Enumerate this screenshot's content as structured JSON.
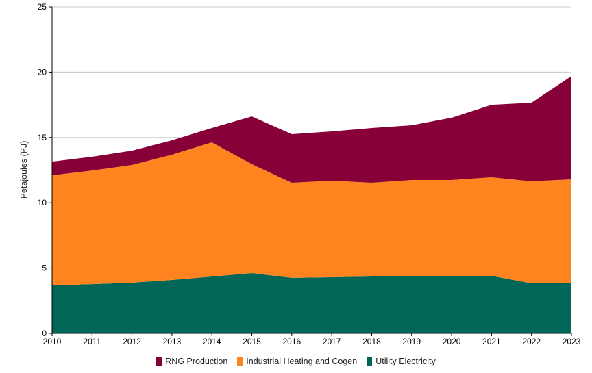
{
  "chart_data": {
    "type": "area",
    "stacked": true,
    "title": "",
    "xlabel": "",
    "ylabel": "Petajoules (PJ)",
    "ylim": [
      0,
      25
    ],
    "yticks": [
      0,
      5,
      10,
      15,
      20,
      25
    ],
    "grid": true,
    "legend_position": "bottom",
    "x": [
      2010,
      2011,
      2012,
      2013,
      2014,
      2015,
      2016,
      2017,
      2018,
      2019,
      2020,
      2021,
      2022,
      2023
    ],
    "series": [
      {
        "name": "Utility Electricity",
        "color": "#006758",
        "values": [
          3.67,
          3.77,
          3.88,
          4.09,
          4.35,
          4.61,
          4.25,
          4.3,
          4.35,
          4.4,
          4.4,
          4.4,
          3.83,
          3.88
        ]
      },
      {
        "name": "Industrial Heating and Cogen",
        "color": "#FF8420",
        "values": [
          8.43,
          8.7,
          9.01,
          9.59,
          10.27,
          8.34,
          7.28,
          7.39,
          7.18,
          7.34,
          7.34,
          7.55,
          7.81,
          7.91
        ]
      },
      {
        "name": "RNG Production",
        "color": "#870038",
        "values": [
          1.05,
          1.05,
          1.1,
          1.1,
          1.1,
          3.66,
          3.72,
          3.77,
          4.19,
          4.19,
          4.77,
          5.55,
          6.02,
          7.91
        ]
      }
    ],
    "legend_order": [
      "RNG Production",
      "Industrial Heating and Cogen",
      "Utility Electricity"
    ]
  }
}
